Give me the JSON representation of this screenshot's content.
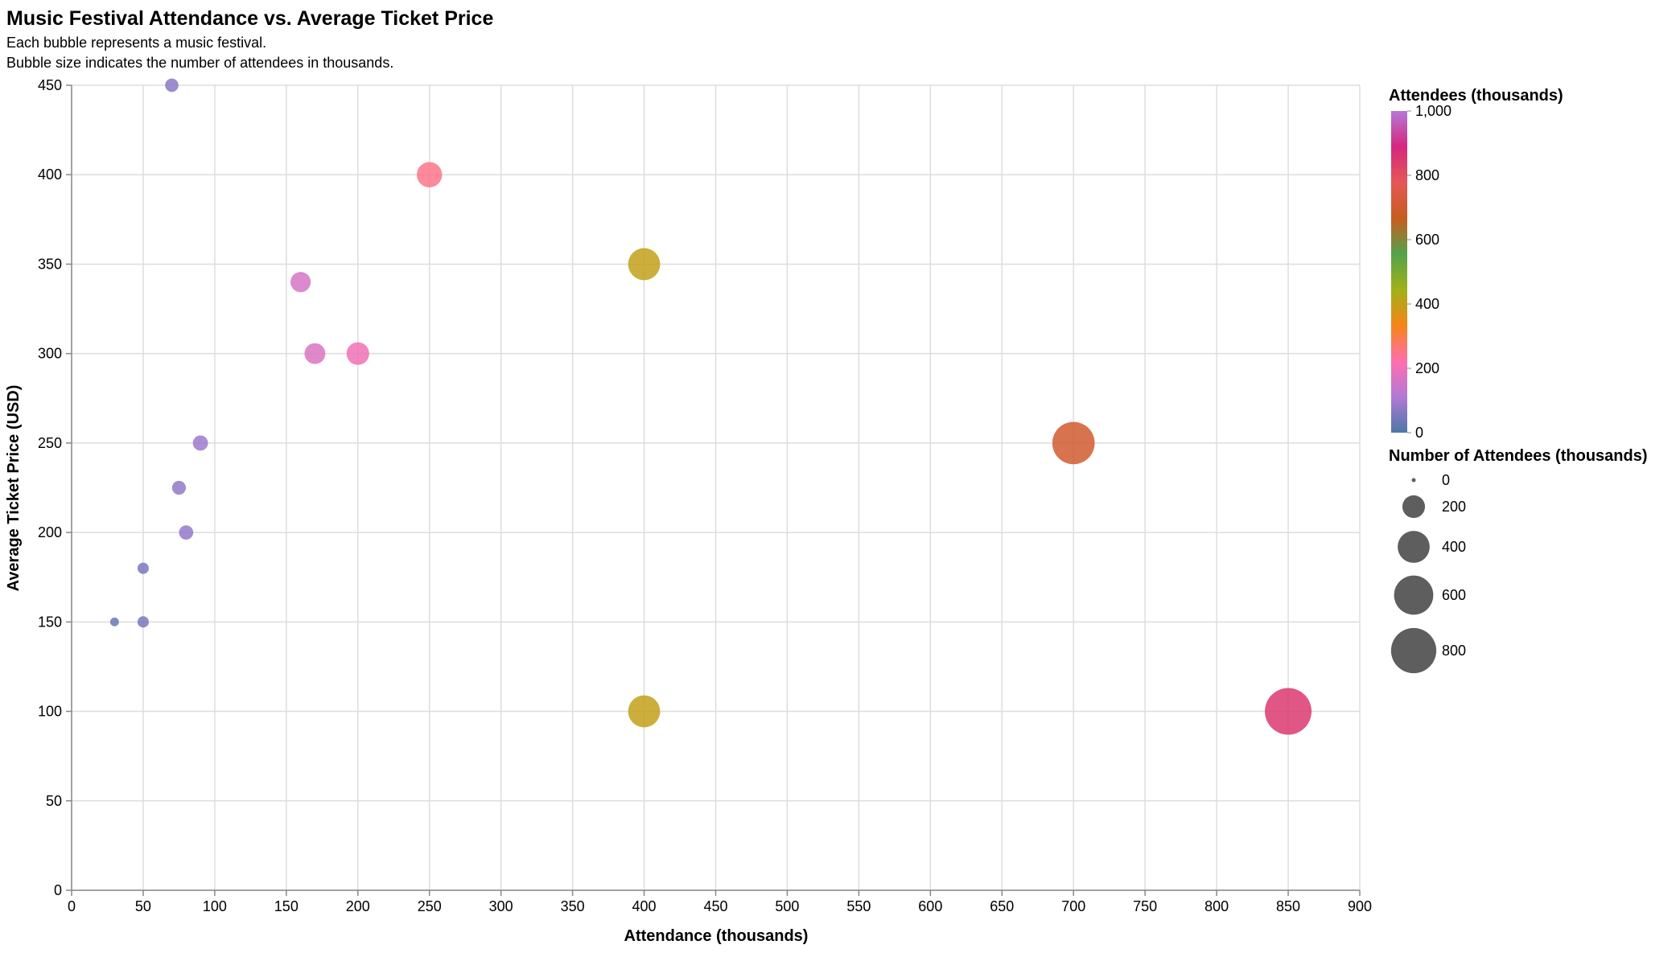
{
  "chart_data": {
    "type": "scatter",
    "title": "Music Festival Attendance vs. Average Ticket Price",
    "subtitle": [
      "Each bubble represents a music festival.",
      "Bubble size indicates the number of attendees in thousands."
    ],
    "xlabel": "Attendance (thousands)",
    "ylabel": "Average Ticket Price (USD)",
    "xlim": [
      0,
      900
    ],
    "ylim": [
      0,
      450
    ],
    "x_ticks": [
      0,
      50,
      100,
      150,
      200,
      250,
      300,
      350,
      400,
      450,
      500,
      550,
      600,
      650,
      700,
      750,
      800,
      850,
      900
    ],
    "y_ticks": [
      0,
      50,
      100,
      150,
      200,
      250,
      300,
      350,
      400,
      450
    ],
    "grid": true,
    "points": [
      {
        "x": 850,
        "y": 100,
        "size": 850
      },
      {
        "x": 700,
        "y": 250,
        "size": 700
      },
      {
        "x": 400,
        "y": 350,
        "size": 400
      },
      {
        "x": 400,
        "y": 100,
        "size": 400
      },
      {
        "x": 250,
        "y": 400,
        "size": 250
      },
      {
        "x": 200,
        "y": 300,
        "size": 200
      },
      {
        "x": 170,
        "y": 300,
        "size": 170
      },
      {
        "x": 160,
        "y": 340,
        "size": 160
      },
      {
        "x": 90,
        "y": 250,
        "size": 90
      },
      {
        "x": 80,
        "y": 200,
        "size": 80
      },
      {
        "x": 75,
        "y": 225,
        "size": 75
      },
      {
        "x": 70,
        "y": 450,
        "size": 70
      },
      {
        "x": 50,
        "y": 180,
        "size": 50
      },
      {
        "x": 50,
        "y": 150,
        "size": 50
      },
      {
        "x": 30,
        "y": 150,
        "size": 30
      }
    ],
    "color_legend": {
      "title": "Attendees (thousands)",
      "ticks": [
        "0",
        "200",
        "400",
        "600",
        "800",
        "1,000"
      ],
      "tick_values": [
        0,
        200,
        400,
        600,
        800,
        1000
      ],
      "domain": [
        0,
        1000
      ],
      "gradient": [
        "#4c78a8",
        "#b279d6",
        "#ff6fae",
        "#f58518",
        "#a0b21a",
        "#54a24b",
        "#c85d1f",
        "#e45756",
        "#d6277e",
        "#b279d6"
      ]
    },
    "size_legend": {
      "title": "Number of Attendees (thousands)",
      "entries": [
        {
          "label": "0",
          "value": 0
        },
        {
          "label": "200",
          "value": 200
        },
        {
          "label": "400",
          "value": 400
        },
        {
          "label": "600",
          "value": 600
        },
        {
          "label": "800",
          "value": 800
        }
      ]
    }
  }
}
